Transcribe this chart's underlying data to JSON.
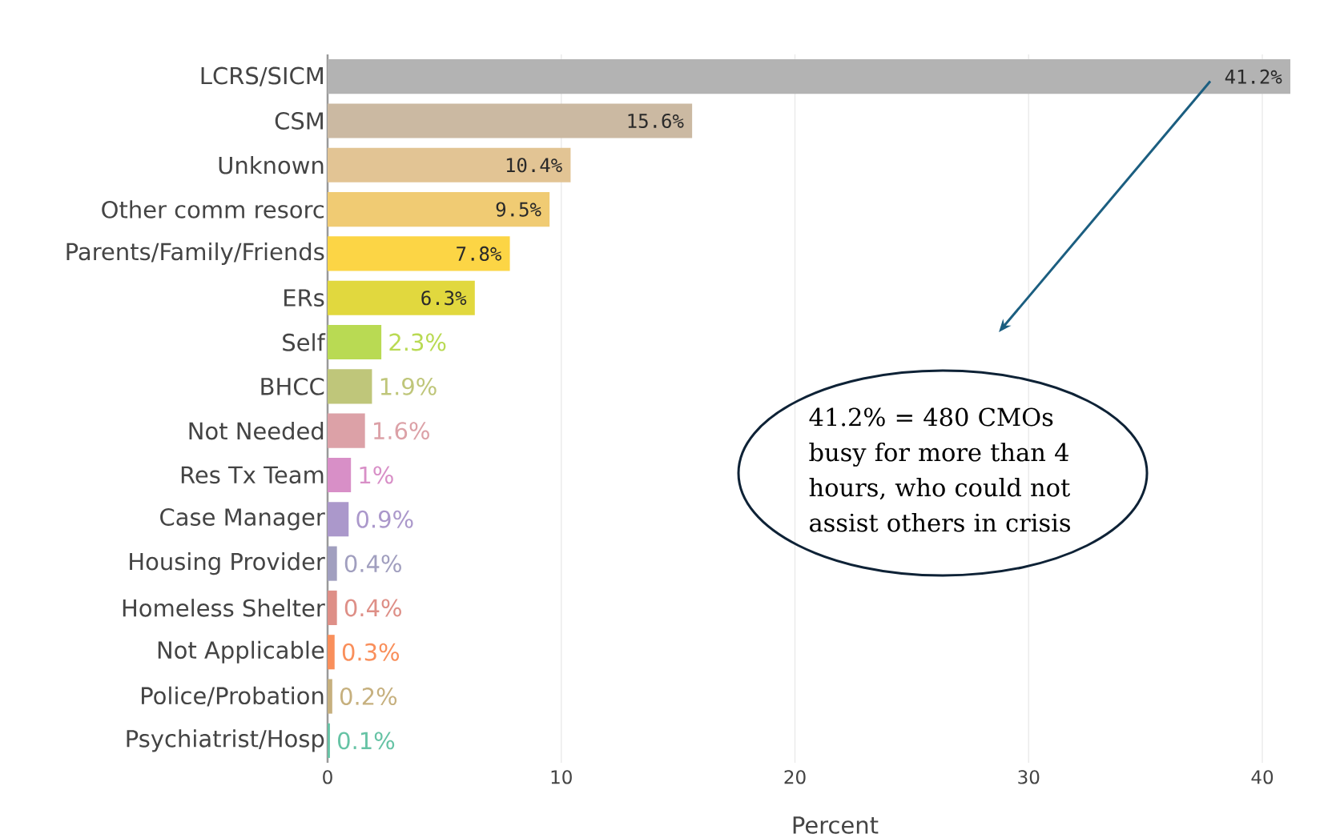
{
  "chart_data": {
    "type": "bar",
    "orientation": "horizontal",
    "categories": [
      "LCRS/SICM",
      "CSM",
      "Unknown",
      "Other comm resorc",
      "Parents/Family/Friends",
      "ERs",
      "Self",
      "BHCC",
      "Not Needed",
      "Res Tx Team",
      "Case Manager",
      "Housing Provider",
      "Homeless Shelter",
      "Not Applicable",
      "Police/Probation",
      "Psychiatrist/Hosp"
    ],
    "values": [
      41.2,
      15.6,
      10.4,
      9.5,
      7.8,
      6.3,
      2.3,
      1.9,
      1.6,
      1,
      0.9,
      0.4,
      0.4,
      0.3,
      0.2,
      0.1
    ],
    "colors": [
      "#b3b3b3",
      "#cbb9a2",
      "#e2c494",
      "#f0cb73",
      "#fcd545",
      "#e1d83e",
      "#b9da53",
      "#bfc67a",
      "#dca1a7",
      "#d88fc7",
      "#ab98cb",
      "#a19fbf",
      "#de8f87",
      "#f98f5b",
      "#c6b07e",
      "#66c3a5"
    ],
    "value_labels": [
      "41.2%",
      "15.6%",
      "10.4%",
      "9.5%",
      "7.8%",
      "6.3%",
      "2.3%",
      "1.9%",
      "1.6%",
      "1%",
      "0.9%",
      "0.4%",
      "0.4%",
      "0.3%",
      "0.2%",
      "0.1%"
    ],
    "xlabel": "Percent",
    "xlim": [
      0,
      41.2
    ],
    "xticks": [
      0,
      10,
      20,
      30,
      40
    ],
    "grid": "x",
    "annotations": [
      "41.2% = 480 CMOs busy for more than 4 hours, who could not assist others in crisis"
    ]
  }
}
